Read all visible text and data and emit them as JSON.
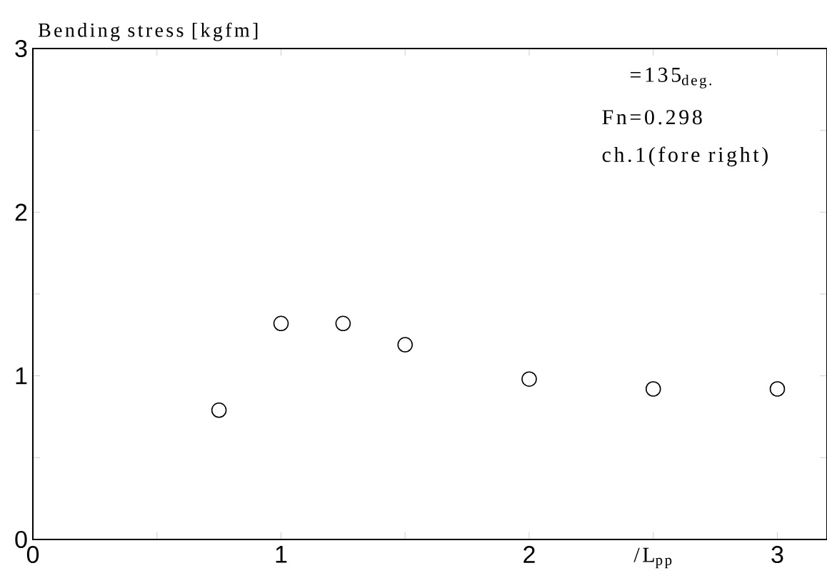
{
  "chart_data": {
    "type": "scatter",
    "ylabel": "Bending stress [kgfm]",
    "xlabel": "/L$_{pp}$",
    "x": [
      0.75,
      1.0,
      1.25,
      1.5,
      2.0,
      2.5,
      3.0
    ],
    "values": [
      0.79,
      1.32,
      1.32,
      1.19,
      0.98,
      0.92,
      0.92
    ],
    "color": "#000000",
    "marker": "circle",
    "xlim": [
      0,
      3.2
    ],
    "ylim": [
      0,
      3
    ],
    "xticks": [
      0,
      {
        "value": 0.5,
        "label": null
      },
      1,
      {
        "value": 1.5,
        "label": null
      },
      2,
      {
        "value": 2.5,
        "label": null
      },
      3
    ],
    "yticks": [
      0,
      {
        "value": 0.5,
        "label": null
      },
      1,
      {
        "value": 1.5,
        "label": null
      },
      2,
      {
        "value": 2.5,
        "label": null
      },
      3
    ],
    "annotations": [
      "=135$_{deg.}$",
      "Fn=0.298",
      "ch.1(fore right)"
    ],
    "grid": false
  }
}
